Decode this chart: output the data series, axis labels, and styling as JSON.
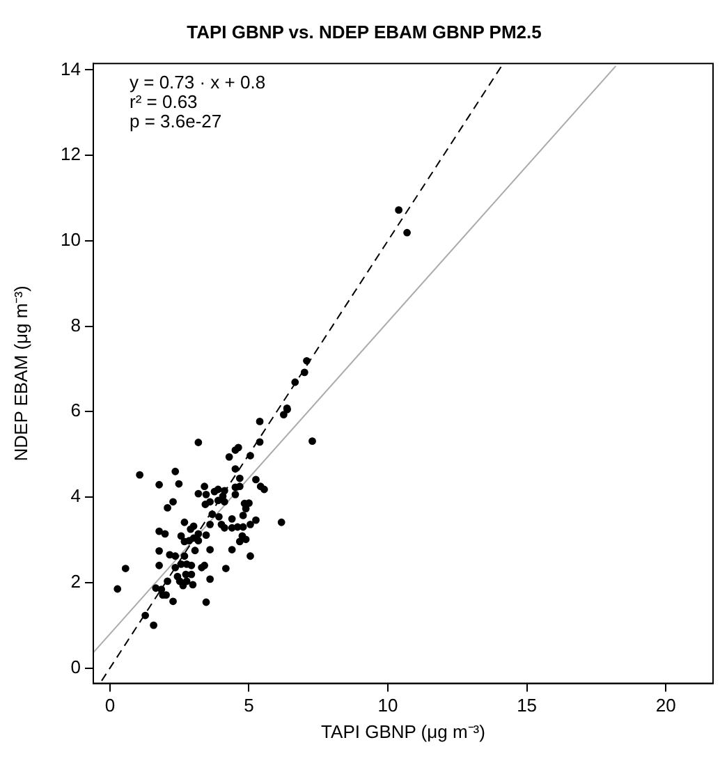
{
  "chart_data": {
    "type": "scatter",
    "title": "TAPI GBNP vs. NDEP EBAM GBNP PM2.5",
    "xlabel": "TAPI GBNP (μg m⁻³)",
    "ylabel": "NDEP EBAM (μg m⁻³)",
    "xlim": [
      -0.6,
      21.7
    ],
    "ylim": [
      -0.36,
      14.15
    ],
    "xticks": [
      0,
      5,
      10,
      15,
      20
    ],
    "yticks": [
      0,
      2,
      4,
      6,
      8,
      10,
      12,
      14
    ],
    "grid": false,
    "legend": false,
    "marker": "circle",
    "annotations": [
      "y = 0.73 · x + 0.8",
      "r² = 0.63",
      "p = 3.6e-27"
    ],
    "series": [
      {
        "type": "scatter",
        "color": "#000000",
        "x": [
          0.27,
          0.56,
          1.07,
          1.57,
          1.27,
          1.77,
          2.35,
          2.48,
          2.27,
          2.07,
          1.77,
          1.98,
          1.77,
          1.77,
          2.15,
          2.35,
          1.65,
          1.85,
          1.9,
          2.02,
          2.27,
          2.07,
          2.35,
          2.43,
          2.51,
          2.63,
          2.76,
          2.73,
          2.93,
          2.56,
          2.76,
          2.93,
          3.3,
          3.4,
          2.98,
          3.46,
          3.6,
          2.68,
          3.06,
          3.6,
          4.17,
          4.39,
          5.05,
          2.56,
          2.68,
          2.85,
          3.01,
          3.18,
          3.18,
          2.68,
          2.9,
          3.01,
          3.46,
          3.6,
          3.68,
          3.43,
          3.6,
          3.18,
          3.4,
          3.46,
          3.76,
          3.89,
          3.89,
          4.06,
          4.12,
          4.12,
          4.51,
          4.67,
          4.51,
          4.67,
          4.51,
          3.92,
          4.01,
          4.12,
          4.39,
          4.59,
          4.79,
          5.05,
          5.25,
          4.79,
          4.39,
          4.84,
          5.0,
          4.89,
          4.76,
          4.89,
          4.67,
          6.17,
          5.25,
          5.42,
          5.55,
          5.05,
          4.29,
          4.51,
          4.62,
          5.39,
          5.39,
          3.18,
          7.28,
          6.25,
          6.38,
          7.08,
          7.0,
          6.66,
          6.37,
          10.39,
          10.69
        ],
        "values": [
          1.85,
          2.33,
          4.52,
          1.0,
          1.23,
          4.29,
          4.6,
          4.31,
          3.89,
          3.75,
          3.2,
          3.14,
          2.74,
          2.4,
          2.65,
          2.62,
          1.87,
          1.84,
          1.71,
          1.71,
          1.56,
          2.03,
          2.35,
          2.14,
          2.03,
          1.93,
          2.03,
          2.19,
          2.19,
          2.43,
          2.43,
          2.4,
          2.35,
          2.4,
          1.95,
          1.54,
          2.08,
          2.62,
          2.75,
          2.77,
          2.33,
          2.77,
          2.62,
          3.09,
          2.96,
          2.98,
          3.04,
          2.98,
          3.14,
          3.41,
          3.25,
          3.32,
          3.11,
          3.36,
          3.6,
          3.83,
          3.89,
          4.08,
          4.25,
          4.06,
          4.13,
          4.18,
          3.92,
          4.02,
          4.15,
          3.89,
          4.23,
          4.25,
          4.06,
          4.44,
          4.66,
          3.54,
          3.36,
          3.28,
          3.28,
          3.3,
          3.3,
          3.36,
          3.46,
          3.57,
          3.49,
          3.85,
          3.86,
          3.73,
          3.09,
          3.01,
          2.96,
          3.41,
          4.41,
          4.25,
          4.18,
          4.97,
          4.94,
          5.1,
          5.16,
          5.29,
          5.77,
          5.28,
          5.31,
          5.93,
          6.05,
          7.19,
          6.92,
          6.69,
          6.08,
          10.72,
          10.19
        ]
      },
      {
        "type": "line",
        "color": "#000000",
        "line_style": "dashed",
        "marker": "none",
        "x": [
          -0.3,
          14.1
        ],
        "values": [
          -0.3,
          14.1
        ]
      },
      {
        "type": "line",
        "color": "#aaaaaa",
        "line_style": "solid",
        "marker": "none",
        "x": [
          -0.6,
          18.2
        ],
        "values": [
          0.36,
          14.09
        ]
      }
    ]
  }
}
